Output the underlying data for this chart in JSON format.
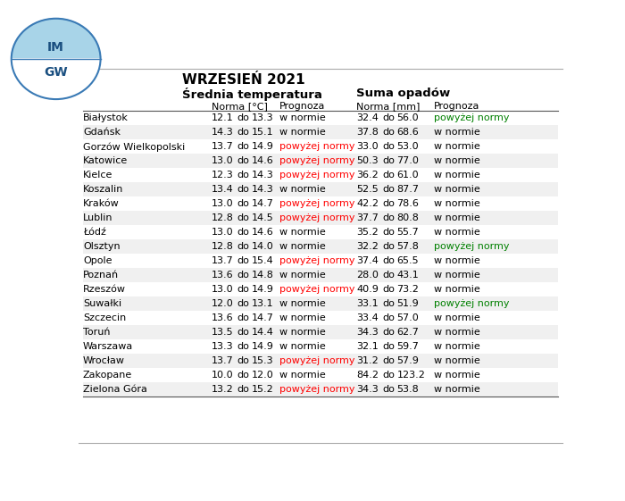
{
  "title": "WRZESIEŃ 2021",
  "subtitle_temp": "Średnia temperatura",
  "subtitle_precip": "Suma opadów",
  "cities": [
    "Białystok",
    "Gdańsk",
    "Gorzów Wielkopolski",
    "Katowice",
    "Kielce",
    "Koszalin",
    "Kraków",
    "Lublin",
    "Łódź",
    "Olsztyn",
    "Opole",
    "Poznań",
    "Rzeszów",
    "Suwałki",
    "Szczecin",
    "Toruń",
    "Warszawa",
    "Wrocław",
    "Zakopane",
    "Zielona Góra"
  ],
  "temp_min": [
    12.1,
    14.3,
    13.7,
    13.0,
    12.3,
    13.4,
    13.0,
    12.8,
    13.0,
    12.8,
    13.7,
    13.6,
    13.0,
    12.0,
    13.6,
    13.5,
    13.3,
    13.7,
    10.0,
    13.2
  ],
  "temp_max": [
    13.3,
    15.1,
    14.9,
    14.6,
    14.3,
    14.3,
    14.7,
    14.5,
    14.6,
    14.0,
    15.4,
    14.8,
    14.9,
    13.1,
    14.7,
    14.4,
    14.9,
    15.3,
    12.0,
    15.2
  ],
  "temp_prognoza": [
    "w normie",
    "w normie",
    "powyżej normy",
    "powyżej normy",
    "powyżej normy",
    "w normie",
    "powyżej normy",
    "powyżej normy",
    "w normie",
    "w normie",
    "powyżej normy",
    "w normie",
    "powyżej normy",
    "w normie",
    "w normie",
    "w normie",
    "w normie",
    "powyżej normy",
    "w normie",
    "powyżej normy"
  ],
  "precip_min": [
    32.4,
    37.8,
    33.0,
    50.3,
    36.2,
    52.5,
    42.2,
    37.7,
    35.2,
    32.2,
    37.4,
    28.0,
    40.9,
    33.1,
    33.4,
    34.3,
    32.1,
    31.2,
    84.2,
    34.3
  ],
  "precip_max": [
    56.0,
    68.6,
    53.0,
    77.0,
    61.0,
    87.7,
    78.6,
    80.8,
    55.7,
    57.8,
    65.5,
    43.1,
    73.2,
    51.9,
    57.0,
    62.7,
    59.7,
    57.9,
    123.2,
    53.8
  ],
  "precip_prognoza": [
    "powyżej normy",
    "w normie",
    "w normie",
    "w normie",
    "w normie",
    "w normie",
    "w normie",
    "w normie",
    "w normie",
    "powyżej normy",
    "w normie",
    "w normie",
    "w normie",
    "powyżej normy",
    "w normie",
    "w normie",
    "w normie",
    "w normie",
    "w normie",
    "w normie"
  ],
  "bg_color": "#ffffff",
  "text_color": "#000000",
  "red_color": "#ff0000",
  "green_color": "#008000"
}
